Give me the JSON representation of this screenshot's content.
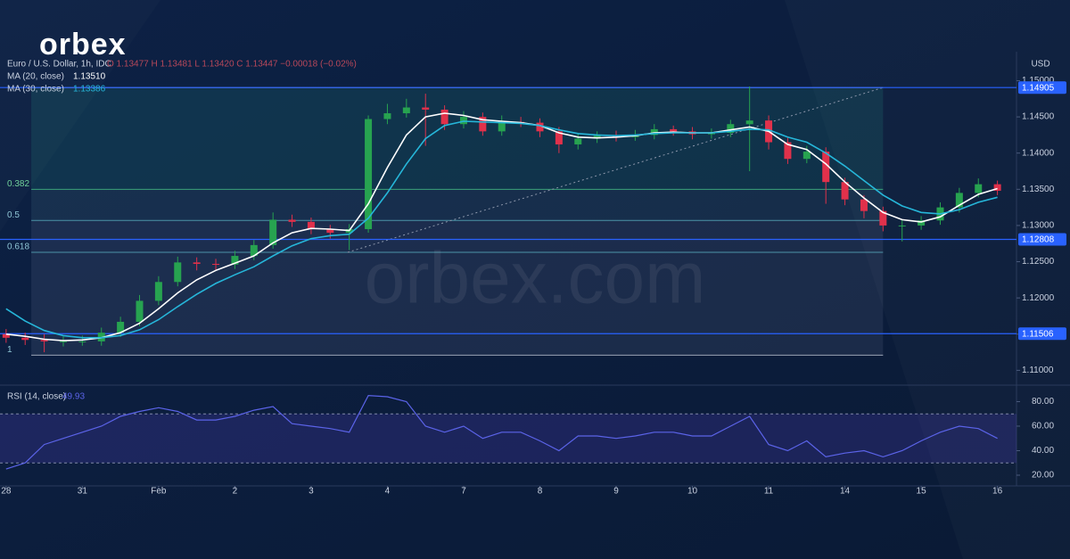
{
  "logo": "orbex",
  "watermark": "orbex.com",
  "chart_data": {
    "type": "candlestick",
    "symbol": "Euro / U.S. Dollar, 1h, IDC",
    "readout": "O 1.13477 H 1.13481 L 1.13420 C 1.13447 −0.00018 (−0.02%)",
    "y_axis_label": "USD",
    "x": [
      0,
      0.25,
      0.5,
      0.75,
      1,
      1.25,
      1.5,
      1.75,
      2,
      2.25,
      2.5,
      2.75,
      3,
      3.25,
      3.5,
      3.75,
      4,
      4.25,
      4.5,
      4.75,
      5,
      5.25,
      5.5,
      5.75,
      6,
      6.25,
      6.5,
      6.75,
      7,
      7.25,
      7.5,
      7.75,
      8,
      8.25,
      8.5,
      8.75,
      9,
      9.25,
      9.5,
      9.75,
      10,
      10.25,
      10.5,
      10.75,
      11,
      11.25,
      11.5,
      11.75,
      12,
      12.25,
      12.5,
      12.75,
      13
    ],
    "xlim": [
      -0.08,
      13.25
    ],
    "xticks": [
      {
        "value": 0,
        "label": "28"
      },
      {
        "value": 1,
        "label": "31"
      },
      {
        "value": 2,
        "label": "Feb"
      },
      {
        "value": 3,
        "label": "2"
      },
      {
        "value": 4,
        "label": "3"
      },
      {
        "value": 5,
        "label": "4"
      },
      {
        "value": 6,
        "label": "7"
      },
      {
        "value": 7,
        "label": "8"
      },
      {
        "value": 8,
        "label": "9"
      },
      {
        "value": 9,
        "label": "10"
      },
      {
        "value": 10,
        "label": "11"
      },
      {
        "value": 11,
        "label": "14"
      },
      {
        "value": 12,
        "label": "15"
      },
      {
        "value": 13,
        "label": "16"
      }
    ],
    "open": [
      1.115,
      1.1145,
      1.1142,
      1.114,
      1.114,
      1.114,
      1.1152,
      1.1167,
      1.1196,
      1.1222,
      1.1249,
      1.1247,
      1.1246,
      1.1258,
      1.1273,
      1.1308,
      1.1305,
      1.1295,
      1.129,
      1.1295,
      1.1447,
      1.1455,
      1.1463,
      1.146,
      1.144,
      1.145,
      1.143,
      1.1443,
      1.1442,
      1.143,
      1.1412,
      1.142,
      1.1424,
      1.1422,
      1.1425,
      1.1433,
      1.143,
      1.1426,
      1.1428,
      1.144,
      1.1445,
      1.1415,
      1.1392,
      1.1402,
      1.136,
      1.1336,
      1.132,
      1.13,
      1.13,
      1.1307,
      1.1325,
      1.1345,
      1.1357
    ],
    "high": [
      1.1157,
      1.1152,
      1.115,
      1.1147,
      1.1148,
      1.1159,
      1.1174,
      1.1204,
      1.123,
      1.1257,
      1.1256,
      1.1254,
      1.1265,
      1.128,
      1.1318,
      1.1315,
      1.1311,
      1.1301,
      1.1302,
      1.1452,
      1.1468,
      1.1475,
      1.1482,
      1.1466,
      1.1458,
      1.1456,
      1.1452,
      1.145,
      1.1448,
      1.1436,
      1.1428,
      1.143,
      1.1431,
      1.1432,
      1.144,
      1.1438,
      1.1436,
      1.1434,
      1.1446,
      1.1492,
      1.1452,
      1.1421,
      1.141,
      1.1408,
      1.1366,
      1.1342,
      1.1326,
      1.1308,
      1.1313,
      1.1332,
      1.1352,
      1.1365,
      1.1362
    ],
    "low": [
      1.1138,
      1.1135,
      1.1125,
      1.1133,
      1.1134,
      1.1134,
      1.1146,
      1.1161,
      1.119,
      1.1216,
      1.1238,
      1.1239,
      1.124,
      1.1252,
      1.1268,
      1.1298,
      1.1288,
      1.1282,
      1.1266,
      1.129,
      1.144,
      1.1449,
      1.141,
      1.1432,
      1.1434,
      1.1424,
      1.1424,
      1.1436,
      1.1422,
      1.14,
      1.1405,
      1.1414,
      1.1416,
      1.1417,
      1.1419,
      1.1424,
      1.1419,
      1.142,
      1.1422,
      1.1375,
      1.1405,
      1.1385,
      1.1386,
      1.133,
      1.1328,
      1.131,
      1.1292,
      1.1278,
      1.1294,
      1.1301,
      1.1318,
      1.1339,
      1.1342
    ],
    "close": [
      1.1145,
      1.1142,
      1.114,
      1.114,
      1.114,
      1.1152,
      1.1167,
      1.1196,
      1.1222,
      1.1249,
      1.1247,
      1.1246,
      1.1258,
      1.1273,
      1.1308,
      1.1305,
      1.1295,
      1.129,
      1.1295,
      1.1447,
      1.1455,
      1.1463,
      1.146,
      1.144,
      1.145,
      1.143,
      1.1443,
      1.1442,
      1.143,
      1.1412,
      1.142,
      1.1424,
      1.1422,
      1.1425,
      1.1433,
      1.143,
      1.1426,
      1.1428,
      1.144,
      1.1445,
      1.1415,
      1.1392,
      1.1402,
      1.136,
      1.1336,
      1.132,
      1.13,
      1.13,
      1.1307,
      1.1325,
      1.1345,
      1.1357,
      1.1348
    ],
    "up_color": "#27a350",
    "down_color": "#e0314b",
    "ylim": [
      1.1082,
      1.154
    ],
    "yticks": [
      {
        "value": 1.11,
        "label": "1.11000"
      },
      {
        "value": 1.115,
        "label": "1.11500"
      },
      {
        "value": 1.12,
        "label": "1.12000"
      },
      {
        "value": 1.125,
        "label": "1.12500"
      },
      {
        "value": 1.13,
        "label": "1.13000"
      },
      {
        "value": 1.135,
        "label": "1.13500"
      },
      {
        "value": 1.14,
        "label": "1.14000"
      },
      {
        "value": 1.145,
        "label": "1.14500"
      },
      {
        "value": 1.15,
        "label": "1.15000"
      }
    ],
    "ma_series": [
      {
        "name": "MA (20, close)",
        "last_value": "1.13510",
        "color": "#ffffff",
        "values": [
          1.115,
          1.1147,
          1.1143,
          1.1141,
          1.1142,
          1.1145,
          1.1152,
          1.1165,
          1.1185,
          1.1207,
          1.1225,
          1.1238,
          1.1248,
          1.1258,
          1.1276,
          1.129,
          1.1296,
          1.1295,
          1.1293,
          1.133,
          1.138,
          1.1425,
          1.145,
          1.1455,
          1.1452,
          1.1446,
          1.1444,
          1.1442,
          1.1438,
          1.1428,
          1.1422,
          1.1421,
          1.1422,
          1.1424,
          1.1428,
          1.1429,
          1.1428,
          1.1428,
          1.1432,
          1.1436,
          1.143,
          1.1412,
          1.1405,
          1.1385,
          1.136,
          1.1338,
          1.1318,
          1.1308,
          1.1305,
          1.1312,
          1.1328,
          1.1343,
          1.1351
        ]
      },
      {
        "name": "MA (30, close)",
        "last_value": "1.13386",
        "color": "#26b6d9",
        "values": [
          1.1185,
          1.1168,
          1.1155,
          1.1148,
          1.1145,
          1.1145,
          1.1148,
          1.1156,
          1.117,
          1.1188,
          1.1205,
          1.122,
          1.1232,
          1.1243,
          1.1258,
          1.1272,
          1.1282,
          1.1286,
          1.1288,
          1.131,
          1.1345,
          1.1385,
          1.142,
          1.1438,
          1.1444,
          1.1443,
          1.1442,
          1.1441,
          1.1438,
          1.1432,
          1.1427,
          1.1425,
          1.1424,
          1.1425,
          1.1427,
          1.1428,
          1.1428,
          1.1428,
          1.143,
          1.1433,
          1.1432,
          1.1422,
          1.1415,
          1.14,
          1.1382,
          1.1362,
          1.1342,
          1.1327,
          1.1318,
          1.1316,
          1.1322,
          1.1332,
          1.1339
        ]
      }
    ],
    "levels": [
      1.14905,
      1.12808,
      1.11506
    ],
    "level_color": "#2962ff",
    "fib": {
      "x": [
        0.33,
        11.5
      ],
      "levels": [
        {
          "ratio": 0.382,
          "price": 1.135
        },
        {
          "ratio": 0.5,
          "price": 1.1307
        },
        {
          "ratio": 0.618,
          "price": 1.1263
        },
        {
          "ratio": 1,
          "price": 1.1121
        }
      ]
    },
    "trendline": {
      "x": [
        4.48,
        11.5
      ],
      "y": [
        1.1263,
        1.14905
      ]
    },
    "rsi": {
      "name": "RSI (14, close)",
      "last_value": "49.93",
      "color": "#5b63e8",
      "values": [
        25,
        30,
        45,
        50,
        55,
        60,
        68,
        72,
        75,
        72,
        65,
        65,
        68,
        73,
        76,
        62,
        60,
        58,
        55,
        85,
        84,
        80,
        60,
        55,
        60,
        50,
        55,
        55,
        48,
        40,
        52,
        52,
        50,
        52,
        55,
        55,
        52,
        52,
        60,
        68,
        45,
        40,
        48,
        35,
        38,
        40,
        35,
        40,
        48,
        55,
        60,
        58,
        50
      ],
      "ylim": [
        14.9,
        92.7
      ],
      "yticks": [
        {
          "value": 20,
          "label": "20.00"
        },
        {
          "value": 40,
          "label": "40.00"
        },
        {
          "value": 60,
          "label": "60.00"
        },
        {
          "value": 80,
          "label": "80.00"
        }
      ],
      "band": [
        30,
        70
      ]
    }
  }
}
